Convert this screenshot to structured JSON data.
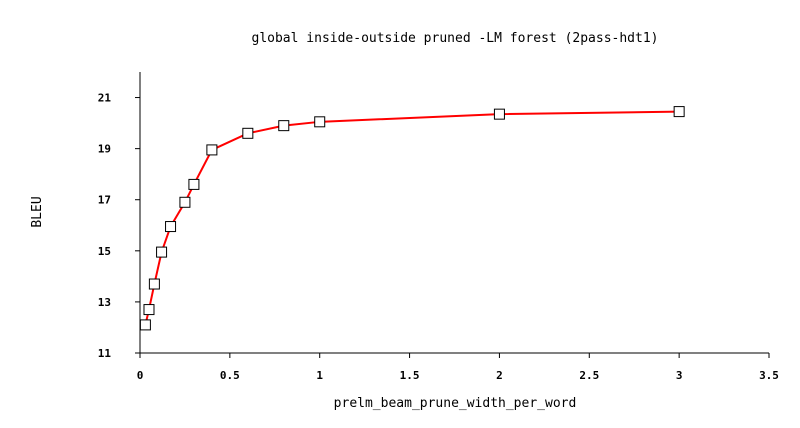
{
  "chart_data": {
    "type": "line",
    "title": "global inside-outside pruned -LM forest (2pass-hdt1)",
    "xlabel": "prelm_beam_prune_width_per_word",
    "ylabel": "BLEU",
    "xlim": [
      0,
      3.5
    ],
    "ylim": [
      11,
      22
    ],
    "x_ticks": [
      0,
      0.5,
      1,
      1.5,
      2,
      2.5,
      3,
      3.5
    ],
    "x_tick_labels": [
      "0",
      "0.5",
      "1",
      "1.5",
      "2",
      "2.5",
      "3",
      "3.5"
    ],
    "y_ticks": [
      11,
      13,
      15,
      17,
      19,
      21
    ],
    "y_tick_labels": [
      "11",
      "13",
      "15",
      "17",
      "19",
      "21"
    ],
    "grid": false,
    "series": [
      {
        "color": "#ff0000",
        "marker": "open-square",
        "x": [
          0.03,
          0.05,
          0.08,
          0.12,
          0.17,
          0.25,
          0.3,
          0.4,
          0.6,
          0.8,
          1.0,
          2.0,
          3.0
        ],
        "y": [
          12.1,
          12.7,
          13.7,
          14.95,
          15.95,
          16.9,
          17.6,
          18.95,
          19.6,
          19.9,
          20.05,
          20.35,
          20.45
        ]
      }
    ]
  }
}
